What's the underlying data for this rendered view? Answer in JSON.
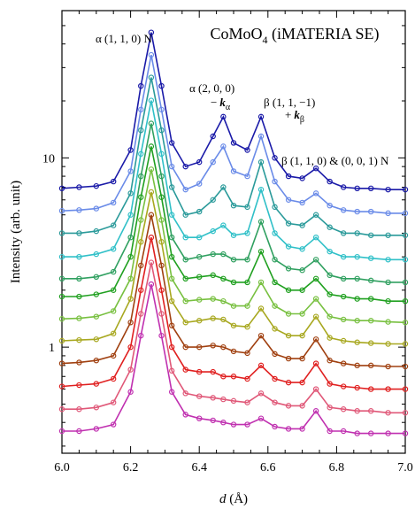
{
  "chart_data": {
    "type": "scatter",
    "title": {
      "main": "CoMoO",
      "sub": "4",
      "rest": " (iMATERIA SE)"
    },
    "x_label": {
      "symbol": "d",
      "rest": " (Å)"
    },
    "y_label": "Intensity (arb. unit)",
    "log_scale_y": true,
    "fit_lines": true,
    "x": [
      6.0,
      6.05,
      6.1,
      6.15,
      6.2,
      6.23,
      6.26,
      6.29,
      6.32,
      6.36,
      6.4,
      6.44,
      6.47,
      6.5,
      6.54,
      6.58,
      6.62,
      6.66,
      6.7,
      6.74,
      6.78,
      6.82,
      6.86,
      6.9,
      6.95,
      7.0
    ],
    "xlim": [
      6.0,
      7.0
    ],
    "xticks": [
      {
        "value": 6.0,
        "label": "6.0"
      },
      {
        "value": 6.2,
        "label": "6.2"
      },
      {
        "value": 6.4,
        "label": "6.4"
      },
      {
        "value": 6.6,
        "label": "6.6"
      },
      {
        "value": 6.8,
        "label": "6.8"
      },
      {
        "value": 7.0,
        "label": "7.0"
      }
    ],
    "xminorticks": [
      6.05,
      6.1,
      6.15,
      6.25,
      6.3,
      6.35,
      6.45,
      6.5,
      6.55,
      6.65,
      6.7,
      6.75,
      6.85,
      6.9,
      6.95
    ],
    "ylim": [
      0.275,
      60
    ],
    "yticks": [
      1,
      10
    ],
    "yminorticks": [
      0.3,
      0.4,
      0.5,
      0.6,
      0.7,
      0.8,
      0.9,
      2,
      3,
      4,
      5,
      6,
      7,
      8,
      9,
      20,
      30,
      40,
      50
    ],
    "series": [
      {
        "color": "#1a1aa8",
        "values": [
          6.9,
          7.0,
          7.1,
          7.5,
          11,
          24,
          46,
          24,
          12,
          9,
          9.5,
          13,
          16.5,
          12,
          11,
          16.5,
          10,
          8,
          7.8,
          8.8,
          7.5,
          7.0,
          6.9,
          6.9,
          6.8,
          6.8
        ]
      },
      {
        "color": "#6a8be8",
        "values": [
          5.25,
          5.3,
          5.4,
          5.8,
          8.5,
          18,
          35,
          18,
          9,
          6.8,
          7.3,
          9.5,
          11.5,
          8.5,
          8,
          13,
          7.5,
          6,
          5.8,
          6.5,
          5.6,
          5.3,
          5.2,
          5.2,
          5.1,
          5.1
        ]
      },
      {
        "color": "#2a9a9a",
        "values": [
          4.0,
          4.0,
          4.1,
          4.4,
          6.5,
          14,
          26.6,
          14,
          7,
          5,
          5.2,
          6,
          7,
          5.6,
          5.5,
          9.5,
          5.5,
          4.5,
          4.4,
          5.0,
          4.3,
          4.0,
          4.0,
          3.9,
          3.9,
          3.9
        ]
      },
      {
        "color": "#30c0c8",
        "values": [
          3.0,
          3.0,
          3.1,
          3.3,
          5,
          10.5,
          20.1,
          10.5,
          5,
          3.8,
          3.8,
          4.1,
          4.4,
          3.9,
          4,
          6.8,
          4,
          3.4,
          3.3,
          3.8,
          3.2,
          3.0,
          3.0,
          2.95,
          2.9,
          2.9
        ]
      },
      {
        "color": "#30a060",
        "values": [
          2.3,
          2.3,
          2.35,
          2.5,
          3.8,
          8,
          15.2,
          8,
          3.8,
          2.9,
          3.0,
          3.1,
          3.1,
          2.9,
          2.9,
          4.6,
          2.9,
          2.6,
          2.55,
          2.9,
          2.4,
          2.3,
          2.3,
          2.25,
          2.2,
          2.2
        ]
      },
      {
        "color": "#20a020",
        "values": [
          1.85,
          1.85,
          1.9,
          2.0,
          3.0,
          6.2,
          11.5,
          6.2,
          3.0,
          2.3,
          2.35,
          2.4,
          2.3,
          2.2,
          2.2,
          3.2,
          2.2,
          2.0,
          2.0,
          2.3,
          1.9,
          1.85,
          1.8,
          1.8,
          1.75,
          1.75
        ]
      },
      {
        "color": "#78c040",
        "values": [
          1.41,
          1.42,
          1.45,
          1.55,
          2.3,
          4.7,
          8.7,
          4.7,
          2.3,
          1.75,
          1.78,
          1.8,
          1.75,
          1.65,
          1.65,
          2.2,
          1.65,
          1.5,
          1.5,
          1.8,
          1.45,
          1.4,
          1.38,
          1.38,
          1.36,
          1.35
        ]
      },
      {
        "color": "#a8a820",
        "values": [
          1.08,
          1.09,
          1.1,
          1.18,
          1.8,
          3.6,
          6.6,
          3.6,
          1.75,
          1.35,
          1.38,
          1.42,
          1.4,
          1.3,
          1.28,
          1.6,
          1.25,
          1.15,
          1.15,
          1.45,
          1.12,
          1.08,
          1.06,
          1.05,
          1.04,
          1.04
        ]
      },
      {
        "color": "#a04010",
        "values": [
          0.82,
          0.83,
          0.85,
          0.9,
          1.35,
          2.7,
          5.0,
          2.7,
          1.3,
          1.0,
          1.0,
          1.02,
          1.0,
          0.95,
          0.93,
          1.15,
          0.92,
          0.87,
          0.87,
          1.1,
          0.85,
          0.82,
          0.8,
          0.8,
          0.79,
          0.79
        ]
      },
      {
        "color": "#e02020",
        "values": [
          0.62,
          0.63,
          0.64,
          0.68,
          1.0,
          2.0,
          3.8,
          2.0,
          1.0,
          0.76,
          0.74,
          0.74,
          0.7,
          0.7,
          0.68,
          0.8,
          0.68,
          0.65,
          0.65,
          0.82,
          0.64,
          0.62,
          0.61,
          0.6,
          0.6,
          0.6
        ]
      },
      {
        "color": "#e05878",
        "values": [
          0.47,
          0.47,
          0.48,
          0.51,
          0.76,
          1.5,
          2.8,
          1.5,
          0.75,
          0.57,
          0.55,
          0.54,
          0.53,
          0.52,
          0.51,
          0.57,
          0.51,
          0.49,
          0.49,
          0.6,
          0.48,
          0.47,
          0.46,
          0.46,
          0.45,
          0.45
        ]
      },
      {
        "color": "#c030b0",
        "values": [
          0.36,
          0.36,
          0.37,
          0.39,
          0.58,
          1.15,
          2.15,
          1.15,
          0.58,
          0.44,
          0.42,
          0.41,
          0.4,
          0.39,
          0.39,
          0.42,
          0.38,
          0.37,
          0.37,
          0.46,
          0.36,
          0.36,
          0.35,
          0.35,
          0.35,
          0.35
        ]
      }
    ],
    "annotations": [
      {
        "text": "α (1, 1, 0) N"
      },
      {
        "text": "α (2, 0, 0)"
      },
      {
        "sign": "−",
        "symbol": "k",
        "sub": "α"
      },
      {
        "text": "β (1, 1, −1)"
      },
      {
        "sign": "+",
        "symbol": "k",
        "sub": "β"
      },
      {
        "text": "β (1, 1, 0) & (0, 0, 1) N"
      }
    ]
  }
}
